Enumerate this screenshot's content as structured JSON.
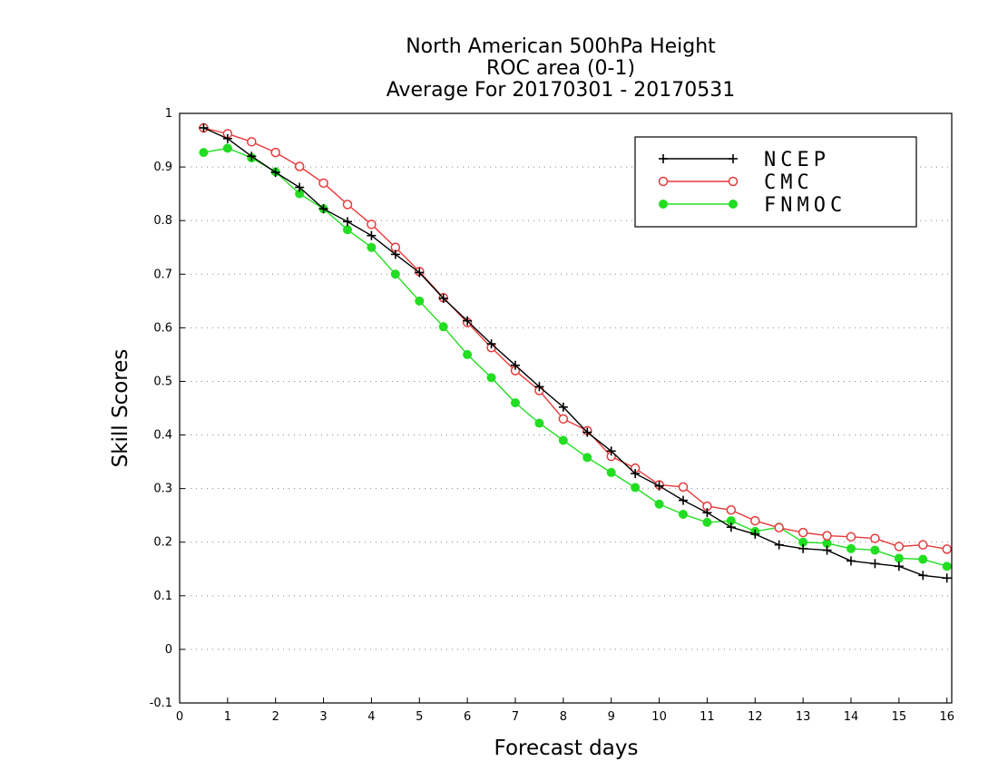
{
  "chart_data": {
    "type": "line",
    "title_lines": [
      "North American 500hPa Height",
      "ROC area (0-1)",
      "Average For 20170301 - 20170531"
    ],
    "xlabel": "Forecast days",
    "ylabel": "Skill Scores",
    "xlim": [
      0,
      16.1
    ],
    "ylim": [
      -0.1,
      1
    ],
    "xticks": [
      0,
      1,
      2,
      3,
      4,
      5,
      6,
      7,
      8,
      9,
      10,
      11,
      12,
      13,
      14,
      15,
      16
    ],
    "ytick_labels": [
      "-0.1",
      "0",
      "0.1",
      "0.2",
      "0.3",
      "0.4",
      "0.5",
      "0.6",
      "0.7",
      "0.8",
      "0.9",
      "1"
    ],
    "yticks": [
      -0.1,
      0,
      0.1,
      0.2,
      0.3,
      0.4,
      0.5,
      0.6,
      0.7,
      0.8,
      0.9,
      1.0
    ],
    "grid": "horizontal dotted",
    "legend_position": "top-right",
    "x": [
      0.5,
      1,
      1.5,
      2,
      2.5,
      3,
      3.5,
      4,
      4.5,
      5,
      5.5,
      6,
      6.5,
      7,
      7.5,
      8,
      8.5,
      9,
      9.5,
      10,
      10.5,
      11,
      11.5,
      12,
      12.5,
      13,
      13.5,
      14,
      14.5,
      15,
      15.5,
      16
    ],
    "series": [
      {
        "name": "NCEP",
        "color": "#000000",
        "marker": "plus",
        "values": [
          0.973,
          0.953,
          0.92,
          0.89,
          0.862,
          0.822,
          0.798,
          0.772,
          0.737,
          0.703,
          0.655,
          0.613,
          0.57,
          0.53,
          0.49,
          0.452,
          0.405,
          0.37,
          0.328,
          0.305,
          0.278,
          0.255,
          0.228,
          0.215,
          0.195,
          0.188,
          0.185,
          0.165,
          0.16,
          0.155,
          0.138,
          0.133
        ]
      },
      {
        "name": "CMC",
        "color": "#e8393a",
        "marker": "open-circle",
        "values": [
          0.973,
          0.962,
          0.947,
          0.927,
          0.901,
          0.87,
          0.83,
          0.793,
          0.75,
          0.705,
          0.656,
          0.61,
          0.563,
          0.52,
          0.483,
          0.43,
          0.408,
          0.36,
          0.338,
          0.307,
          0.303,
          0.267,
          0.26,
          0.24,
          0.227,
          0.218,
          0.212,
          0.21,
          0.207,
          0.192,
          0.195,
          0.187
        ]
      },
      {
        "name": "FNMOC",
        "color": "#22dd22",
        "marker": "filled-circle",
        "values": [
          0.927,
          0.935,
          0.917,
          0.891,
          0.85,
          0.822,
          0.783,
          0.75,
          0.7,
          0.65,
          0.602,
          0.55,
          0.507,
          0.46,
          0.422,
          0.39,
          0.358,
          0.33,
          0.302,
          0.271,
          0.252,
          0.237,
          0.24,
          0.22,
          0.228,
          0.2,
          0.198,
          0.188,
          0.185,
          0.17,
          0.168,
          0.155
        ]
      }
    ]
  }
}
